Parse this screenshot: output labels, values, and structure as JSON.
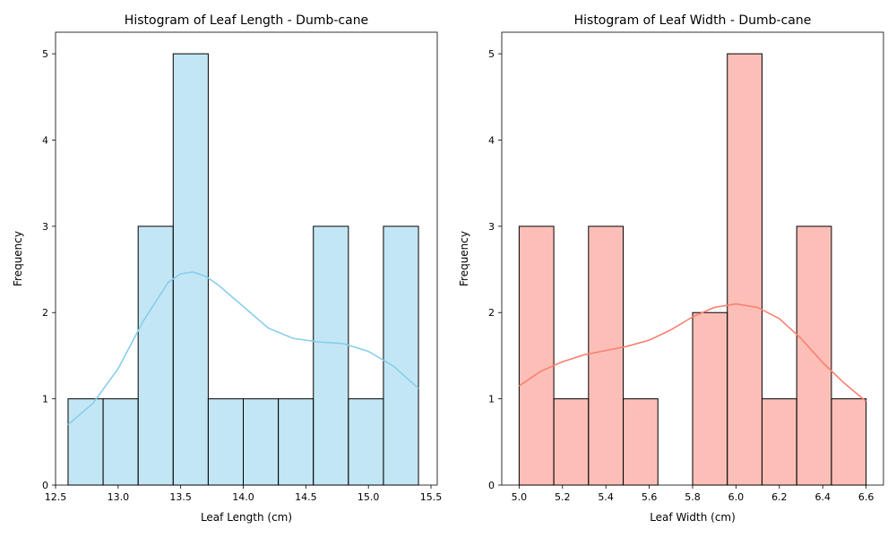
{
  "chart_data": [
    {
      "type": "bar",
      "subtype": "histogram-with-kde",
      "title": "Histogram of Leaf Length - Dumb-cane",
      "xlabel": "Leaf Length (cm)",
      "ylabel": "Frequency",
      "xlim": [
        12.5,
        15.55
      ],
      "ylim": [
        0,
        5.25
      ],
      "xticks": [
        12.5,
        13.0,
        13.5,
        14.0,
        14.5,
        15.0,
        15.5
      ],
      "xtick_labels": [
        "12.5",
        "13.0",
        "13.5",
        "14.0",
        "14.5",
        "15.0",
        "15.5"
      ],
      "yticks": [
        0,
        1,
        2,
        3,
        4,
        5
      ],
      "ytick_labels": [
        "0",
        "1",
        "2",
        "3",
        "4",
        "5"
      ],
      "bin_edges": [
        12.6,
        12.88,
        13.16,
        13.44,
        13.72,
        14.0,
        14.28,
        14.56,
        14.84,
        15.12,
        15.4
      ],
      "counts": [
        1,
        1,
        3,
        5,
        1,
        1,
        1,
        3,
        1,
        3
      ],
      "bar_color": "#87CEEB",
      "bar_alpha": 0.5,
      "kde_color": "#87CEEB",
      "kde": {
        "x": [
          12.6,
          12.8,
          13.0,
          13.2,
          13.4,
          13.5,
          13.6,
          13.7,
          13.8,
          14.0,
          14.2,
          14.4,
          14.6,
          14.8,
          15.0,
          15.2,
          15.4
        ],
        "y": [
          0.7,
          0.95,
          1.35,
          1.9,
          2.35,
          2.45,
          2.47,
          2.42,
          2.32,
          2.07,
          1.82,
          1.7,
          1.66,
          1.64,
          1.55,
          1.38,
          1.12
        ]
      }
    },
    {
      "type": "bar",
      "subtype": "histogram-with-kde",
      "title": "Histogram of Leaf Width - Dumb-cane",
      "xlabel": "Leaf Width (cm)",
      "ylabel": "Frequency",
      "xlim": [
        4.92,
        6.68
      ],
      "ylim": [
        0,
        5.25
      ],
      "xticks": [
        5.0,
        5.2,
        5.4,
        5.6,
        5.8,
        6.0,
        6.2,
        6.4,
        6.6
      ],
      "xtick_labels": [
        "5.0",
        "5.2",
        "5.4",
        "5.6",
        "5.8",
        "6.0",
        "6.2",
        "6.4",
        "6.6"
      ],
      "yticks": [
        0,
        1,
        2,
        3,
        4,
        5
      ],
      "ytick_labels": [
        "0",
        "1",
        "2",
        "3",
        "4",
        "5"
      ],
      "bin_edges": [
        5.0,
        5.16,
        5.32,
        5.48,
        5.64,
        5.8,
        5.96,
        6.12,
        6.28,
        6.44,
        6.6
      ],
      "counts": [
        3,
        1,
        3,
        1,
        0,
        2,
        5,
        1,
        3,
        1
      ],
      "bar_color": "#FA8072",
      "bar_alpha": 0.5,
      "kde_color": "#FA8072",
      "kde": {
        "x": [
          5.0,
          5.1,
          5.2,
          5.3,
          5.4,
          5.5,
          5.6,
          5.7,
          5.8,
          5.9,
          6.0,
          6.1,
          6.2,
          6.3,
          6.4,
          6.5,
          6.6
        ],
        "y": [
          1.15,
          1.32,
          1.43,
          1.51,
          1.56,
          1.61,
          1.68,
          1.8,
          1.95,
          2.06,
          2.1,
          2.06,
          1.93,
          1.7,
          1.42,
          1.18,
          0.97
        ]
      }
    }
  ]
}
